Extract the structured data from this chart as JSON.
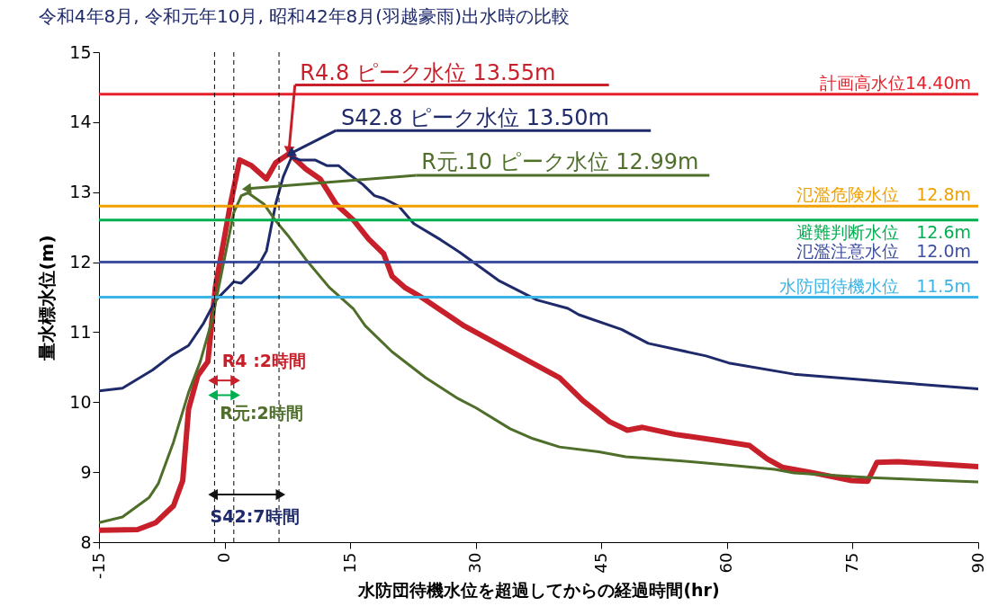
{
  "chart_data": {
    "type": "line",
    "title": "令和4年8月, 令和元年10月, 昭和42年8月(羽越豪雨)出水時の比較",
    "xlabel": "水防団待機水位を超過してからの経過時間(hr)",
    "ylabel": "量水標水位(m)",
    "xlim": [
      -15,
      90
    ],
    "xticks": [
      -15,
      0,
      15,
      30,
      45,
      60,
      75,
      90
    ],
    "ylim": [
      8,
      15
    ],
    "yticks": [
      8,
      9,
      10,
      11,
      12,
      13,
      14,
      15
    ],
    "series": [
      {
        "color": "#c8202a",
        "x": [
          -15,
          -10.4,
          -8.2,
          -6.1,
          -5,
          -4.3,
          -3.2,
          -2,
          -1.1,
          0.7,
          1.8,
          3.2,
          5,
          6.1,
          7.7,
          9.7,
          11.4,
          13.3,
          15.4,
          17.2,
          19,
          20,
          21.5,
          23.5,
          28.6,
          34.1,
          40,
          42.8,
          46,
          48.1,
          49.9,
          53.8,
          58.4,
          62.7,
          64.8,
          66.6,
          70.3,
          74.9,
          76.8,
          77.9,
          80.4,
          90
        ],
        "values": [
          8.17,
          8.18,
          8.28,
          8.52,
          8.88,
          9.9,
          10.38,
          10.58,
          11.64,
          12.83,
          13.46,
          13.38,
          13.19,
          13.42,
          13.55,
          13.33,
          13.19,
          12.83,
          12.6,
          12.33,
          12.12,
          11.8,
          11.64,
          11.5,
          11.09,
          10.73,
          10.35,
          10.02,
          9.72,
          9.6,
          9.64,
          9.54,
          9.46,
          9.38,
          9.19,
          9.07,
          8.99,
          8.88,
          8.87,
          9.14,
          9.15,
          9.08
        ]
      },
      {
        "color": "#1f2a6b",
        "x": [
          -15,
          -12.2,
          -8.6,
          -6.4,
          -4.3,
          -2.5,
          -1.1,
          1.1,
          2,
          3.9,
          5,
          6.1,
          7,
          8,
          9,
          10.8,
          12.2,
          13.6,
          14.7,
          16.5,
          17.9,
          19,
          20.8,
          22.6,
          25.8,
          28.1,
          32.7,
          37.3,
          41,
          42.3,
          47.4,
          50.6,
          57.5,
          60.2,
          68,
          80.4,
          90
        ],
        "values": [
          10.16,
          10.2,
          10.46,
          10.66,
          10.81,
          11.13,
          11.45,
          11.72,
          11.7,
          11.92,
          12.16,
          12.83,
          13.22,
          13.5,
          13.46,
          13.46,
          13.38,
          13.38,
          13.27,
          13.11,
          12.95,
          12.91,
          12.8,
          12.55,
          12.32,
          12.14,
          11.74,
          11.46,
          11.34,
          11.25,
          11.04,
          10.84,
          10.66,
          10.56,
          10.4,
          10.28,
          10.19
        ]
      },
      {
        "color": "#4e6e2a",
        "x": [
          -15,
          -12.2,
          -9,
          -7.9,
          -6.1,
          -4.3,
          -2.9,
          -1.5,
          1.1,
          2,
          2.8,
          4.7,
          6.1,
          7.5,
          9.7,
          12.5,
          15.4,
          16.8,
          20,
          24,
          27.9,
          30,
          34.1,
          36.8,
          40,
          44.7,
          47.9,
          54.7,
          60.2,
          65.7,
          68,
          77.2,
          90
        ],
        "values": [
          8.28,
          8.36,
          8.64,
          8.84,
          9.43,
          10.14,
          10.58,
          11.17,
          12.71,
          12.95,
          12.99,
          12.83,
          12.59,
          12.39,
          12.04,
          11.64,
          11.33,
          11.09,
          10.72,
          10.35,
          10.05,
          9.92,
          9.62,
          9.48,
          9.36,
          9.29,
          9.22,
          9.16,
          9.1,
          9.04,
          8.99,
          8.92,
          8.86
        ]
      }
    ],
    "ref_lines": [
      {
        "axis": "y",
        "value": 14.4,
        "label": "計画高水位14.40m",
        "color": "#e8202a"
      },
      {
        "axis": "y",
        "value": 12.8,
        "label": "氾濫危険水位　12.8m",
        "color": "#f0a000"
      },
      {
        "axis": "y",
        "value": 12.6,
        "label": "避難判断水位　12.6m",
        "color": "#00b050"
      },
      {
        "axis": "y",
        "value": 12.0,
        "label": "氾濫注意水位　12.0m",
        "color": "#3f4fa0"
      },
      {
        "axis": "y",
        "value": 11.5,
        "label": "水防団待機水位　11.5m",
        "color": "#3cb4e6"
      },
      {
        "axis": "x",
        "value": -1.2,
        "color": "#000000",
        "line_style": "dashed"
      },
      {
        "axis": "x",
        "value": 1.1,
        "color": "#000000",
        "line_style": "dashed"
      },
      {
        "axis": "x",
        "value": 6.5,
        "color": "#000000",
        "line_style": "dashed"
      }
    ],
    "annotations": [
      {
        "text": "R4.8 ピーク水位 13.55m",
        "x": 7.7,
        "y": 13.55
      },
      {
        "text": "S42.8 ピーク水位 13.50m",
        "x": 8.0,
        "y": 13.5
      },
      {
        "text": "R元.10 ピーク水位 12.99m",
        "x": 2.8,
        "y": 12.99
      },
      "R4 :2時間",
      "R元:2時間",
      "S42:7時間"
    ]
  }
}
